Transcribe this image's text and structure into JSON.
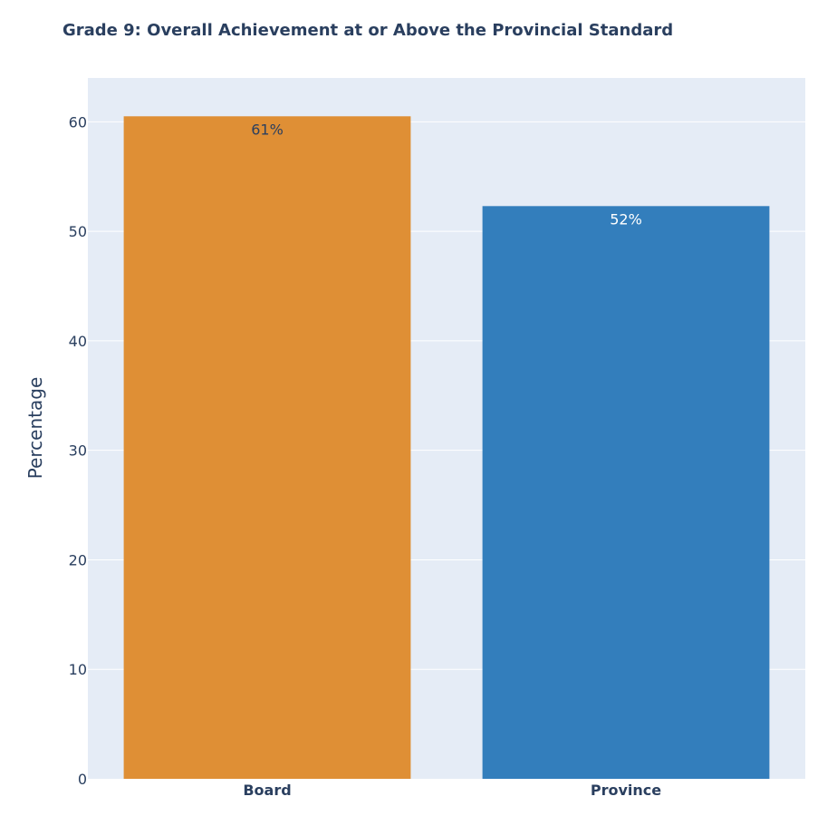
{
  "chart_data": {
    "type": "bar",
    "title": "Grade 9: Overall Achievement at or Above the Provincial Standard",
    "xlabel": "",
    "ylabel": "Percentage",
    "categories": [
      "Board",
      "Province"
    ],
    "values": [
      60.5,
      52.3
    ],
    "data_labels": [
      "61%",
      "52%"
    ],
    "colors": [
      "#df8f35",
      "#337ebc"
    ],
    "label_colors": [
      "#2a3f5f",
      "#ffffff"
    ],
    "ylim": [
      0,
      64
    ],
    "yticks": [
      0,
      10,
      20,
      30,
      40,
      50,
      60
    ],
    "grid": true,
    "plot_background": "#e5ecf6",
    "legend": "none"
  }
}
